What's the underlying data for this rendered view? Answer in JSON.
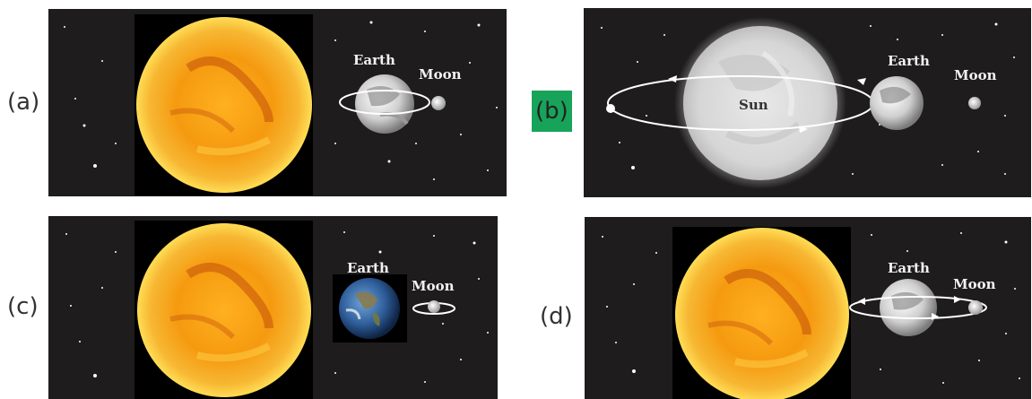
{
  "options": {
    "a": {
      "label": "(a)",
      "earth": "Earth",
      "moon": "Moon"
    },
    "b": {
      "label": "(b)",
      "sun": "Sun",
      "earth": "Earth",
      "moon": "Moon",
      "highlighted": true
    },
    "c": {
      "label": "(c)",
      "earth": "Earth",
      "moon": "Moon"
    },
    "d": {
      "label": "(d)",
      "earth": "Earth",
      "moon": "Moon"
    }
  },
  "colors": {
    "space": "#1e1c1d",
    "sun": "#f5a312",
    "highlight": "#18a35a"
  },
  "icons": [
    "sun-icon",
    "earth-icon",
    "moon-icon",
    "orbit-icon",
    "star-field-icon"
  ]
}
